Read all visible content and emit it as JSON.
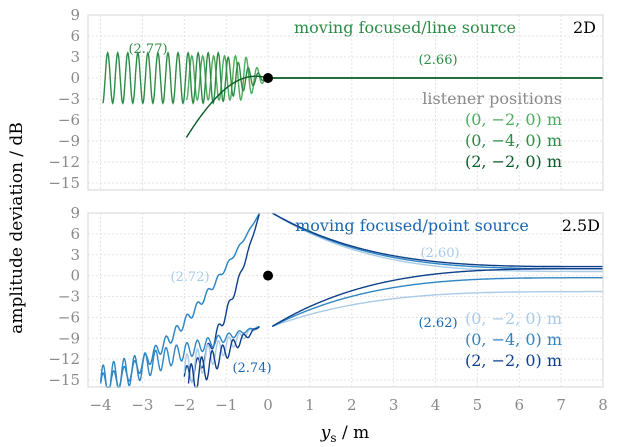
{
  "chart_data": {
    "type": "line",
    "xlabel_prefix": "y",
    "xlabel_sub": "s",
    "xlabel_suffix": " / m",
    "ylabel": "amplitude deviation / dB",
    "xlim": [
      -4.3,
      8
    ],
    "ylim": [
      -16,
      9
    ],
    "xticks": [
      -4,
      -3,
      -2,
      -1,
      0,
      1,
      2,
      3,
      4,
      5,
      6,
      7,
      8
    ],
    "xtick_labels": [
      "−4",
      "−3",
      "−2",
      "−1",
      "0",
      "1",
      "2",
      "3",
      "4",
      "5",
      "6",
      "7",
      "8"
    ],
    "yticks": [
      9,
      6,
      3,
      0,
      -3,
      -6,
      -9,
      -12,
      -15
    ],
    "ytick_labels": [
      "9",
      "6",
      "3",
      "0",
      "−3",
      "−6",
      "−9",
      "−12",
      "−15"
    ],
    "panels": [
      {
        "title": "moving focused/line source",
        "dimension": "2D",
        "legend_title": "listener positions",
        "legend": [
          "(0, −2, 0) m",
          "(0, −4, 0) m",
          "(2, −2, 0) m"
        ],
        "colors": [
          "#4cab5c",
          "#2e8b45",
          "#0b5a2a"
        ],
        "annotations": [
          {
            "text": "(2.77)",
            "x": -3.0,
            "y": 4.8
          },
          {
            "text": "(2.66)",
            "x": 4.1,
            "y": 3.2
          }
        ],
        "marker": {
          "x": 0,
          "y": 0
        },
        "series": [
          {
            "name": "(0, −2, 0) m",
            "x_start": -1.95,
            "x_end": 8,
            "start_value": -3.5,
            "osc_amplitude": 3.5,
            "osc_period": 0.26,
            "decay_length": 0.6
          },
          {
            "name": "(0, −4, 0) m",
            "x_start": -3.95,
            "x_end": 8,
            "start_value": -4,
            "osc_amplitude": 4,
            "osc_period": 0.24,
            "decay_length": 1.6
          },
          {
            "name": "(2, −2, 0) m",
            "x_start": -1.95,
            "x_end": 8,
            "start_value": -8.5,
            "osc_amplitude": 0,
            "osc_period": 0,
            "decay_length": 0.6
          }
        ]
      },
      {
        "title": "moving focused/point source",
        "dimension": "2.5D",
        "legend": [
          "(0, −2, 0) m",
          "(0, −4, 0) m",
          "(2, −2, 0) m"
        ],
        "colors": [
          "#a9cbe8",
          "#2f86c4",
          "#0d3f8a"
        ],
        "annotations": [
          {
            "text": "(2.60)",
            "x": 4.1,
            "y": 3.0
          },
          {
            "text": "(2.72)",
            "x": -2.0,
            "y": -0.5
          },
          {
            "text": "(2.62)",
            "x": 4.1,
            "y": -6.8
          },
          {
            "text": "(2.74)",
            "x": -0.5,
            "y": -13.5
          }
        ],
        "marker": {
          "x": 0,
          "y": 0
        },
        "series": [
          {
            "name": "(0, −2, 0) m",
            "group": "(2.60)/(2.72)",
            "left_x": -4.0,
            "left_y": -15.5,
            "right_end_y": 0.6,
            "near_zero_y": 9.0
          },
          {
            "name": "(0, −4, 0) m",
            "group": "(2.60)/(2.72)",
            "left_x": -4.0,
            "left_y": -15.5,
            "right_end_y": 1.0,
            "near_zero_y": 9.0
          },
          {
            "name": "(2, −2, 0) m",
            "group": "(2.60)/(2.72)",
            "left_x": -2.0,
            "left_y": -14.5,
            "right_end_y": 1.3,
            "near_zero_y": 9.0
          },
          {
            "name": "(0, −2, 0) m",
            "group": "(2.62)/(2.74)",
            "left_x": -2.0,
            "left_y": -14.0,
            "right_end_y": -2.3,
            "near_zero_y": -7.3
          },
          {
            "name": "(0, −4, 0) m",
            "group": "(2.62)/(2.74)",
            "left_x": -4.0,
            "left_y": -15.5,
            "right_end_y": -0.3,
            "near_zero_y": -7.3
          },
          {
            "name": "(2, −2, 0) m",
            "group": "(2.62)/(2.74)",
            "left_x": -1.9,
            "left_y": -15.5,
            "right_end_y": 1.0,
            "near_zero_y": -7.3
          }
        ]
      }
    ]
  }
}
